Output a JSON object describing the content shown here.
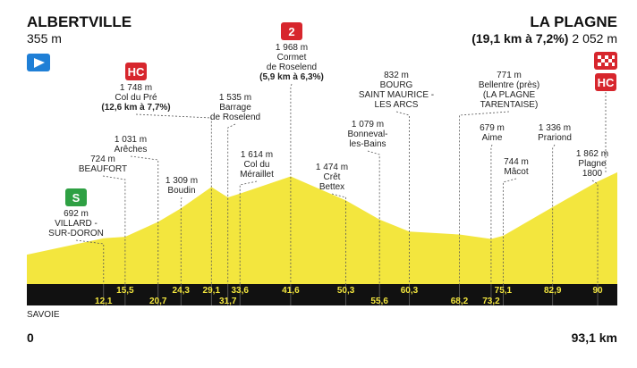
{
  "chart_data": {
    "type": "area",
    "color": "#f3e63e",
    "ylim": [
      -250,
      2400
    ],
    "xlim": [
      0,
      93.1
    ],
    "start": {
      "name": "ALBERTVILLE",
      "km": 0,
      "altitude": {
        "value": 355,
        "label": "355 m"
      }
    },
    "finish": {
      "name": "LA PLAGNE",
      "climb": "(19,1 km à 7,2%)",
      "altitude": {
        "value": 2052,
        "label": "2 052 m"
      },
      "category": "HC",
      "km": {
        "value": 93.1,
        "label": "93,1 km"
      }
    },
    "region": "SAVOIE",
    "waypoints": [
      {
        "km": {
          "value": 12.1,
          "label": "12,1"
        },
        "altitude": {
          "value": 692,
          "label": "692 m"
        },
        "name": [
          "VILLARD -",
          "SUR-DORON"
        ],
        "category": "S"
      },
      {
        "km": {
          "value": 15.5,
          "label": "15,5"
        },
        "altitude": {
          "value": 724,
          "label": "724 m"
        },
        "name": [
          "BEAUFORT"
        ]
      },
      {
        "km": {
          "value": 20.7,
          "label": "20,7"
        },
        "altitude": {
          "value": 1031,
          "label": "1 031 m"
        },
        "name": [
          "Arêches"
        ]
      },
      {
        "km": {
          "value": 24.3,
          "label": "24,3"
        },
        "altitude": {
          "value": 1309,
          "label": "1 309 m"
        },
        "name": [
          "Boudin"
        ]
      },
      {
        "km": {
          "value": 29.1,
          "label": "29,1"
        },
        "altitude": {
          "value": 1748,
          "label": "1 748 m"
        },
        "name": [
          "Col du Pré"
        ],
        "climb": "(12,6 km à 7,7%)",
        "category": "HC"
      },
      {
        "km": {
          "value": 31.7,
          "label": "31,7"
        },
        "altitude": {
          "value": 1535,
          "label": "1 535 m"
        },
        "name": [
          "Barrage",
          "de Roselend"
        ]
      },
      {
        "km": {
          "value": 33.6,
          "label": "33,6"
        },
        "altitude": {
          "value": 1614,
          "label": "1 614 m"
        },
        "name": [
          "Col du",
          "Méraillet"
        ]
      },
      {
        "km": {
          "value": 41.6,
          "label": "41,6"
        },
        "altitude": {
          "value": 1968,
          "label": "1 968 m"
        },
        "name": [
          "Cormet",
          "de Roselend"
        ],
        "climb": "(5,9 km à 6,3%)",
        "category": "2"
      },
      {
        "km": {
          "value": 50.3,
          "label": "50,3"
        },
        "altitude": {
          "value": 1474,
          "label": "1 474 m"
        },
        "name": [
          "Crêt",
          "Bettex"
        ]
      },
      {
        "km": {
          "value": 55.6,
          "label": "55,6"
        },
        "altitude": {
          "value": 1079,
          "label": "1 079 m"
        },
        "name": [
          "Bonneval-",
          "les-Bains"
        ]
      },
      {
        "km": {
          "value": 60.3,
          "label": "60,3"
        },
        "altitude": {
          "value": 832,
          "label": "832 m"
        },
        "name": [
          "BOURG",
          "SAINT MAURICE -",
          "LES ARCS"
        ]
      },
      {
        "km": {
          "value": 68.2,
          "label": "68,2"
        },
        "altitude": {
          "value": 771,
          "label": "771 m"
        },
        "name": [
          "Bellentre (près)",
          "(LA PLAGNE",
          "TARENTAISE)"
        ]
      },
      {
        "km": {
          "value": 73.2,
          "label": "73,2"
        },
        "altitude": {
          "value": 679,
          "label": "679 m"
        },
        "name": [
          "Aime"
        ]
      },
      {
        "km": {
          "value": 75.1,
          "label": "75,1"
        },
        "altitude": {
          "value": 744,
          "label": "744 m"
        },
        "name": [
          "Mâcot"
        ]
      },
      {
        "km": {
          "value": 82.9,
          "label": "82,9"
        },
        "altitude": {
          "value": 1336,
          "label": "1 336 m"
        },
        "name": [
          "Prariond"
        ]
      },
      {
        "km": 90,
        "altitude": {
          "value": 1862,
          "label": "1 862 m"
        },
        "name": [
          "Plagne",
          "1800"
        ]
      }
    ]
  }
}
